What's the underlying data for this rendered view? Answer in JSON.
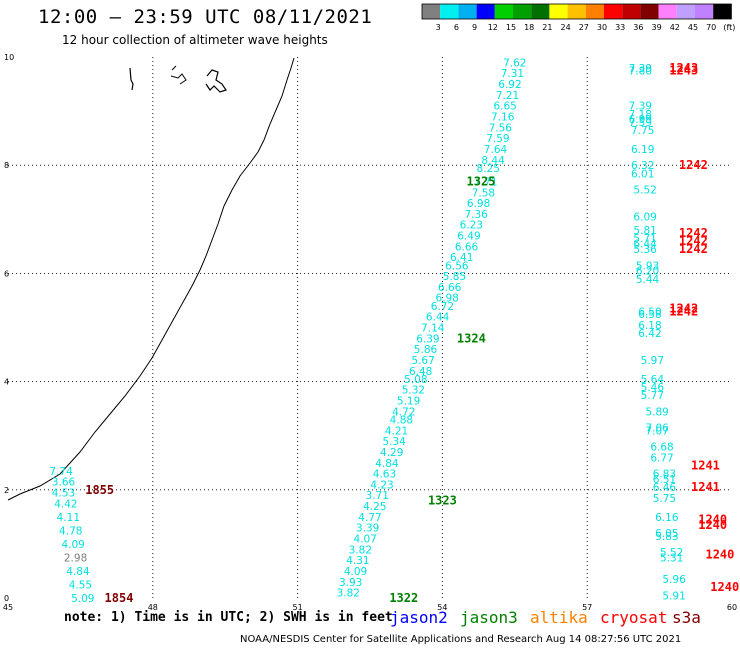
{
  "header": {
    "title": "12:00 – 23:59 UTC 08/11/2021",
    "subtitle": "12 hour collection of altimeter wave heights"
  },
  "colorbar": {
    "colors": [
      "#808080",
      "#00f0f0",
      "#00b0f0",
      "#0000ff",
      "#00d000",
      "#00a000",
      "#007000",
      "#ffff00",
      "#ffc000",
      "#ff8000",
      "#ff0000",
      "#c00000",
      "#800000",
      "#ff80ff",
      "#c0a0ff",
      "#c080ff",
      "#000000"
    ],
    "labels": [
      "3",
      "6",
      "9",
      "12",
      "15",
      "18",
      "21",
      "24",
      "27",
      "30",
      "33",
      "36",
      "39",
      "42",
      "45",
      "70",
      "(ft)"
    ]
  },
  "footer": {
    "note": "note:  1) Time is in UTC;  2) SWH is in feet",
    "credit": "NOAA/NESDIS Center for Satellite Applications and Research     Aug 14 08:27:56 UTC 2021"
  },
  "legend": [
    {
      "name": "jason2",
      "color": "#0000ff"
    },
    {
      "name": "jason3",
      "color": "#008000"
    },
    {
      "name": "altika",
      "color": "#ff8000"
    },
    {
      "name": "cryosat",
      "color": "#ff0000"
    },
    {
      "name": "s3a",
      "color": "#800000"
    }
  ],
  "chart_data": {
    "type": "scatter",
    "title": "12:00 – 23:59 UTC 08/11/2021",
    "subtitle": "12 hour collection of altimeter wave heights",
    "xlabel": "",
    "ylabel": "",
    "xlim": [
      45,
      60
    ],
    "ylim": [
      0,
      10
    ],
    "x_ticks": [
      45,
      48,
      51,
      54,
      57,
      60
    ],
    "y_ticks": [
      0,
      2,
      4,
      6,
      8,
      10
    ],
    "grid": true,
    "series": [
      {
        "name": "jason3",
        "color": "#00e0e0",
        "time_color": "#008000",
        "times": [
          {
            "label": "1325",
            "lon": 54.8,
            "lat": 7.7
          },
          {
            "label": "1324",
            "lon": 54.6,
            "lat": 4.8
          },
          {
            "label": "1323",
            "lon": 54.0,
            "lat": 1.8
          },
          {
            "label": "1322",
            "lon": 53.2,
            "lat": 0.0
          }
        ],
        "points": [
          {
            "lon": 55.5,
            "lat": 9.9,
            "v": "7.62"
          },
          {
            "lon": 55.45,
            "lat": 9.7,
            "v": "7.31"
          },
          {
            "lon": 55.4,
            "lat": 9.5,
            "v": "6.92"
          },
          {
            "lon": 55.35,
            "lat": 9.3,
            "v": "7.21"
          },
          {
            "lon": 55.3,
            "lat": 9.1,
            "v": "6.65"
          },
          {
            "lon": 55.25,
            "lat": 8.9,
            "v": "7.16"
          },
          {
            "lon": 55.2,
            "lat": 8.7,
            "v": "7.56"
          },
          {
            "lon": 55.15,
            "lat": 8.5,
            "v": "7.59"
          },
          {
            "lon": 55.1,
            "lat": 8.3,
            "v": "7.64"
          },
          {
            "lon": 55.05,
            "lat": 8.1,
            "v": "8.44"
          },
          {
            "lon": 54.95,
            "lat": 7.95,
            "v": "8.25"
          },
          {
            "lon": 54.9,
            "lat": 7.7,
            "v": "7.71"
          },
          {
            "lon": 54.85,
            "lat": 7.5,
            "v": "7.58"
          },
          {
            "lon": 54.75,
            "lat": 7.3,
            "v": "6.98"
          },
          {
            "lon": 54.7,
            "lat": 7.1,
            "v": "7.36"
          },
          {
            "lon": 54.6,
            "lat": 6.9,
            "v": "6.23"
          },
          {
            "lon": 54.55,
            "lat": 6.7,
            "v": "6.49"
          },
          {
            "lon": 54.5,
            "lat": 6.5,
            "v": "6.66"
          },
          {
            "lon": 54.4,
            "lat": 6.3,
            "v": "6.41"
          },
          {
            "lon": 54.3,
            "lat": 6.15,
            "v": "6.56"
          },
          {
            "lon": 54.25,
            "lat": 5.95,
            "v": "5.85"
          },
          {
            "lon": 54.15,
            "lat": 5.75,
            "v": "6.66"
          },
          {
            "lon": 54.1,
            "lat": 5.55,
            "v": "6.98"
          },
          {
            "lon": 54.0,
            "lat": 5.4,
            "v": "6.72"
          },
          {
            "lon": 53.9,
            "lat": 5.2,
            "v": "6.44"
          },
          {
            "lon": 53.8,
            "lat": 5.0,
            "v": "7.14"
          },
          {
            "lon": 53.7,
            "lat": 4.8,
            "v": "6.39"
          },
          {
            "lon": 53.65,
            "lat": 4.6,
            "v": "5.86"
          },
          {
            "lon": 53.6,
            "lat": 4.4,
            "v": "5.67"
          },
          {
            "lon": 53.55,
            "lat": 4.2,
            "v": "6.48"
          },
          {
            "lon": 53.45,
            "lat": 4.05,
            "v": "5.08"
          },
          {
            "lon": 53.4,
            "lat": 3.85,
            "v": "5.32"
          },
          {
            "lon": 53.3,
            "lat": 3.65,
            "v": "5.19"
          },
          {
            "lon": 53.2,
            "lat": 3.45,
            "v": "4.72"
          },
          {
            "lon": 53.15,
            "lat": 3.3,
            "v": "4.88"
          },
          {
            "lon": 53.05,
            "lat": 3.1,
            "v": "4.21"
          },
          {
            "lon": 53.0,
            "lat": 2.9,
            "v": "5.34"
          },
          {
            "lon": 52.95,
            "lat": 2.7,
            "v": "4.29"
          },
          {
            "lon": 52.85,
            "lat": 2.5,
            "v": "4.84"
          },
          {
            "lon": 52.8,
            "lat": 2.3,
            "v": "4.63"
          },
          {
            "lon": 52.75,
            "lat": 2.1,
            "v": "4.23"
          },
          {
            "lon": 52.65,
            "lat": 1.9,
            "v": "3.71"
          },
          {
            "lon": 52.6,
            "lat": 1.7,
            "v": "4.25"
          },
          {
            "lon": 52.5,
            "lat": 1.5,
            "v": "4.77"
          },
          {
            "lon": 52.45,
            "lat": 1.3,
            "v": "3.39"
          },
          {
            "lon": 52.4,
            "lat": 1.1,
            "v": "4.07"
          },
          {
            "lon": 52.3,
            "lat": 0.9,
            "v": "3.82"
          },
          {
            "lon": 52.25,
            "lat": 0.7,
            "v": "4.31"
          },
          {
            "lon": 52.2,
            "lat": 0.5,
            "v": "4.09"
          },
          {
            "lon": 52.1,
            "lat": 0.3,
            "v": "3.93"
          },
          {
            "lon": 52.05,
            "lat": 0.1,
            "v": "3.82"
          }
        ]
      },
      {
        "name": "cryosat",
        "color": "#00e0e0",
        "time_color": "#ff0000",
        "times": [
          {
            "label": "1243",
            "lon": 59.0,
            "lat": 9.8
          },
          {
            "label": "1243",
            "lon": 59.0,
            "lat": 9.75
          },
          {
            "label": "1242",
            "lon": 59.2,
            "lat": 8.0
          },
          {
            "label": "1242",
            "lon": 59.2,
            "lat": 6.75
          },
          {
            "label": "1242",
            "lon": 59.2,
            "lat": 6.6
          },
          {
            "label": "1242",
            "lon": 59.2,
            "lat": 6.45
          },
          {
            "label": "1242",
            "lon": 59.0,
            "lat": 5.35
          },
          {
            "label": "1242",
            "lon": 59.0,
            "lat": 5.3
          },
          {
            "label": "1241",
            "lon": 59.45,
            "lat": 2.45
          },
          {
            "label": "1241",
            "lon": 59.45,
            "lat": 2.05
          },
          {
            "label": "1240",
            "lon": 59.6,
            "lat": 1.45
          },
          {
            "label": "1240",
            "lon": 59.6,
            "lat": 1.35
          },
          {
            "label": "1240",
            "lon": 59.75,
            "lat": 0.8
          },
          {
            "label": "1240",
            "lon": 59.85,
            "lat": 0.2
          }
        ],
        "points": [
          {
            "lon": 58.1,
            "lat": 9.8,
            "v": "7.39"
          },
          {
            "lon": 58.1,
            "lat": 9.75,
            "v": "7.80"
          },
          {
            "lon": 58.1,
            "lat": 9.1,
            "v": "7.39"
          },
          {
            "lon": 58.1,
            "lat": 8.95,
            "v": "7.18"
          },
          {
            "lon": 58.1,
            "lat": 8.85,
            "v": "6.99"
          },
          {
            "lon": 58.1,
            "lat": 8.8,
            "v": "7.59"
          },
          {
            "lon": 58.15,
            "lat": 8.65,
            "v": "7.75"
          },
          {
            "lon": 58.15,
            "lat": 8.3,
            "v": "6.19"
          },
          {
            "lon": 58.15,
            "lat": 8.0,
            "v": "6.32"
          },
          {
            "lon": 58.15,
            "lat": 7.85,
            "v": "6.01"
          },
          {
            "lon": 58.2,
            "lat": 7.55,
            "v": "5.52"
          },
          {
            "lon": 58.2,
            "lat": 7.05,
            "v": "6.09"
          },
          {
            "lon": 58.2,
            "lat": 6.8,
            "v": "5.81"
          },
          {
            "lon": 58.2,
            "lat": 6.65,
            "v": "5.71"
          },
          {
            "lon": 58.2,
            "lat": 6.55,
            "v": "6.44"
          },
          {
            "lon": 58.2,
            "lat": 6.45,
            "v": "5.36"
          },
          {
            "lon": 58.25,
            "lat": 6.15,
            "v": "5.93"
          },
          {
            "lon": 58.25,
            "lat": 6.05,
            "v": "6.20"
          },
          {
            "lon": 58.25,
            "lat": 5.9,
            "v": "5.44"
          },
          {
            "lon": 58.3,
            "lat": 5.3,
            "v": "6.50"
          },
          {
            "lon": 58.3,
            "lat": 5.25,
            "v": "6.58"
          },
          {
            "lon": 58.3,
            "lat": 5.05,
            "v": "6.18"
          },
          {
            "lon": 58.3,
            "lat": 4.9,
            "v": "6.42"
          },
          {
            "lon": 58.35,
            "lat": 4.4,
            "v": "5.97"
          },
          {
            "lon": 58.35,
            "lat": 4.05,
            "v": "5.64"
          },
          {
            "lon": 58.35,
            "lat": 3.9,
            "v": "5.46"
          },
          {
            "lon": 58.35,
            "lat": 3.75,
            "v": "5.77"
          },
          {
            "lon": 58.45,
            "lat": 3.45,
            "v": "5.89"
          },
          {
            "lon": 58.45,
            "lat": 3.15,
            "v": "7.06"
          },
          {
            "lon": 58.45,
            "lat": 3.1,
            "v": "7.07"
          },
          {
            "lon": 58.55,
            "lat": 2.8,
            "v": "6.68"
          },
          {
            "lon": 58.55,
            "lat": 2.6,
            "v": "6.77"
          },
          {
            "lon": 58.6,
            "lat": 2.3,
            "v": "6.83"
          },
          {
            "lon": 58.6,
            "lat": 2.2,
            "v": "6.51"
          },
          {
            "lon": 58.6,
            "lat": 2.05,
            "v": "6.46"
          },
          {
            "lon": 58.6,
            "lat": 1.85,
            "v": "5.75"
          },
          {
            "lon": 58.65,
            "lat": 1.5,
            "v": "6.16"
          },
          {
            "lon": 58.65,
            "lat": 1.2,
            "v": "6.05"
          },
          {
            "lon": 58.65,
            "lat": 1.15,
            "v": "5.83"
          },
          {
            "lon": 58.75,
            "lat": 0.85,
            "v": "5.52"
          },
          {
            "lon": 58.75,
            "lat": 0.75,
            "v": "5.31"
          },
          {
            "lon": 58.8,
            "lat": 0.35,
            "v": "5.96"
          },
          {
            "lon": 58.8,
            "lat": 0.05,
            "v": "5.91"
          }
        ]
      },
      {
        "name": "s3a",
        "color": "#00e0e0",
        "time_color": "#800000",
        "times": [
          {
            "label": "1855",
            "lon": 46.9,
            "lat": 2.0
          },
          {
            "label": "1854",
            "lon": 47.3,
            "lat": 0.0
          }
        ],
        "points": [
          {
            "lon": 46.1,
            "lat": 2.35,
            "v": "7.74"
          },
          {
            "lon": 46.15,
            "lat": 2.15,
            "v": "3.66"
          },
          {
            "lon": 46.15,
            "lat": 1.95,
            "v": "4.53"
          },
          {
            "lon": 46.2,
            "lat": 1.75,
            "v": "4.42"
          },
          {
            "lon": 46.25,
            "lat": 1.5,
            "v": "4.11"
          },
          {
            "lon": 46.3,
            "lat": 1.25,
            "v": "4.78"
          },
          {
            "lon": 46.35,
            "lat": 1.0,
            "v": "4.09"
          },
          {
            "lon": 46.4,
            "lat": 0.75,
            "v": "2.98",
            "c": "#808080"
          },
          {
            "lon": 46.45,
            "lat": 0.5,
            "v": "4.84"
          },
          {
            "lon": 46.5,
            "lat": 0.25,
            "v": "4.55"
          },
          {
            "lon": 46.55,
            "lat": 0.0,
            "v": "5.09"
          }
        ]
      }
    ]
  }
}
